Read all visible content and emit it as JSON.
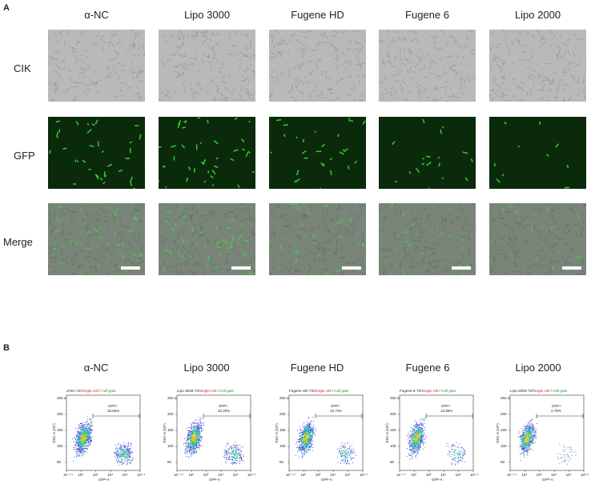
{
  "panel_a": {
    "letter": "A",
    "columns": [
      "α-NC",
      "Lipo 3000",
      "Fugene HD",
      "Fugene 6",
      "Lipo 2000"
    ],
    "rows": [
      "CIK",
      "GFP",
      "Merge"
    ]
  },
  "panel_b": {
    "letter": "B",
    "columns": [
      "α-NC",
      "Lipo 3000",
      "Fugene HD",
      "Fugene 6",
      "Lipo 2000"
    ],
    "plots": [
      {
        "sample": "α-NC-72/",
        "gate_label": "GFP+",
        "percent": "32.86%"
      },
      {
        "sample": "Lipo 3000-72/",
        "gate_label": "GFP+",
        "percent": "25.20%"
      },
      {
        "sample": "Fugene HD-72/",
        "gate_label": "GFP+",
        "percent": "16.72%"
      },
      {
        "sample": "Fugene 6-72/",
        "gate_label": "GFP+",
        "percent": "12.95%"
      },
      {
        "sample": "Lipo-2000-72/",
        "gate_label": "GFP+",
        "percent": "4.78%"
      }
    ],
    "single_cell": "Single cell",
    "sep": " / ",
    "cell_gate": "Cell gate",
    "ylabel": "SSC-A (10⁵)",
    "xlabel": "GFP-A",
    "yticks": [
      "50",
      "100",
      "150",
      "200",
      "262.1"
    ],
    "xticks": [
      "10⁻¹·¹",
      "10²",
      "10³",
      "10⁴",
      "10⁵",
      "10⁵·⁹"
    ]
  },
  "colors": {
    "brightfield": "#b9b9b9",
    "gfp_background": "#0b2a0b",
    "gfp_cell": "#35e035",
    "merge_background": "#7a857a"
  }
}
